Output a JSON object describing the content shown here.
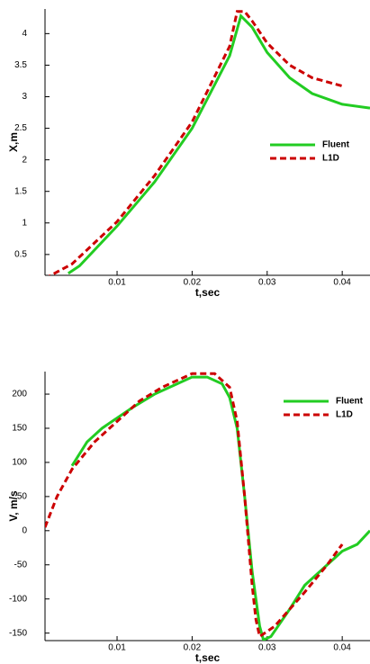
{
  "chart_data": [
    {
      "type": "line",
      "xlabel": "t,sec",
      "ylabel": "X,m",
      "xlim": [
        0.0004,
        0.0437
      ],
      "xticks": [
        0.01,
        0.02,
        0.03,
        0.04
      ],
      "ylim": [
        0.17,
        4.39
      ],
      "yticks": [
        0.5,
        1,
        1.5,
        2,
        2.5,
        3,
        3.5,
        4
      ],
      "legend": "center-right",
      "series": [
        {
          "name": "Fluent",
          "color": "#22cc22",
          "dashed": false,
          "x": [
            0.0035,
            0.005,
            0.01,
            0.015,
            0.02,
            0.025,
            0.0265,
            0.028,
            0.03,
            0.033,
            0.036,
            0.04,
            0.0437
          ],
          "values": [
            0.2,
            0.32,
            0.95,
            1.65,
            2.5,
            3.65,
            4.28,
            4.1,
            3.7,
            3.3,
            3.05,
            2.88,
            2.82
          ]
        },
        {
          "name": "L1D",
          "color": "#cc0000",
          "dashed": true,
          "x": [
            0.0004,
            0.004,
            0.01,
            0.015,
            0.02,
            0.025,
            0.026,
            0.027,
            0.028,
            0.03,
            0.033,
            0.036,
            0.04
          ],
          "values": [
            0.12,
            0.35,
            1.02,
            1.75,
            2.6,
            3.8,
            4.35,
            4.35,
            4.2,
            3.85,
            3.5,
            3.3,
            3.17
          ]
        }
      ]
    },
    {
      "type": "line",
      "xlabel": "t,sec",
      "ylabel": "V, m/s",
      "xlim": [
        0.0004,
        0.0437
      ],
      "xticks": [
        0.01,
        0.02,
        0.03,
        0.04
      ],
      "ylim": [
        -161,
        233
      ],
      "yticks": [
        -150,
        -100,
        -50,
        0,
        50,
        100,
        150,
        200
      ],
      "legend": "upper-right",
      "series": [
        {
          "name": "Fluent",
          "color": "#22cc22",
          "dashed": false,
          "x": [
            0.004,
            0.006,
            0.008,
            0.01,
            0.012,
            0.015,
            0.018,
            0.02,
            0.022,
            0.024,
            0.025,
            0.026,
            0.027,
            0.028,
            0.029,
            0.0295,
            0.0305,
            0.033,
            0.035,
            0.038,
            0.04,
            0.042,
            0.0437
          ],
          "values": [
            95,
            130,
            150,
            165,
            180,
            200,
            215,
            225,
            225,
            215,
            195,
            150,
            50,
            -60,
            -140,
            -160,
            -155,
            -115,
            -80,
            -50,
            -30,
            -20,
            0
          ]
        },
        {
          "name": "L1D",
          "color": "#cc0000",
          "dashed": true,
          "x": [
            0.0004,
            0.002,
            0.004,
            0.007,
            0.01,
            0.013,
            0.016,
            0.02,
            0.023,
            0.025,
            0.026,
            0.027,
            0.028,
            0.0285,
            0.029,
            0.031,
            0.035,
            0.038,
            0.04
          ],
          "values": [
            5,
            50,
            90,
            130,
            160,
            190,
            210,
            230,
            230,
            210,
            160,
            50,
            -80,
            -130,
            -155,
            -140,
            -90,
            -50,
            -20
          ]
        }
      ]
    }
  ]
}
